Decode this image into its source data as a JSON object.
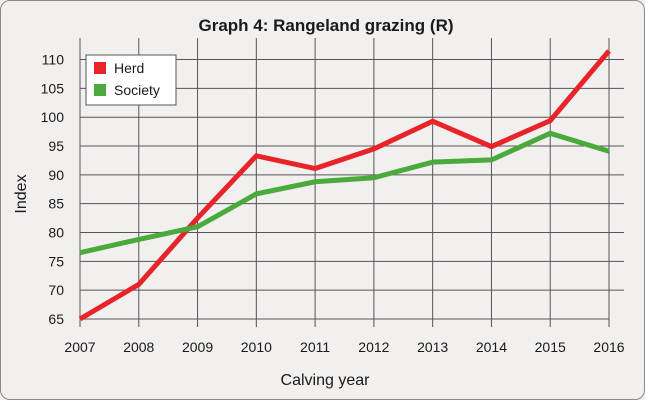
{
  "chart_data": {
    "type": "line",
    "title": "Graph 4: Rangeland grazing (R)",
    "xlabel": "Calving year",
    "ylabel": "Index",
    "x": [
      "2007",
      "2008",
      "2009",
      "2010",
      "2011",
      "2012",
      "2013",
      "2014",
      "2015",
      "2016"
    ],
    "yticks": [
      65,
      70,
      75,
      80,
      85,
      90,
      95,
      100,
      105,
      110
    ],
    "ylim": [
      65,
      112
    ],
    "grid": true,
    "legend_position": "top-left",
    "series": [
      {
        "name": "Herd",
        "color": "#e8232a",
        "values": [
          65,
          71,
          82.5,
          93.3,
          91.1,
          94.5,
          99.3,
          94.9,
          99.4,
          111.5
        ]
      },
      {
        "name": "Society",
        "color": "#4aaa3c",
        "values": [
          76.5,
          78.8,
          81,
          86.7,
          88.8,
          89.5,
          92.2,
          92.6,
          97.2,
          94.1
        ]
      }
    ]
  }
}
